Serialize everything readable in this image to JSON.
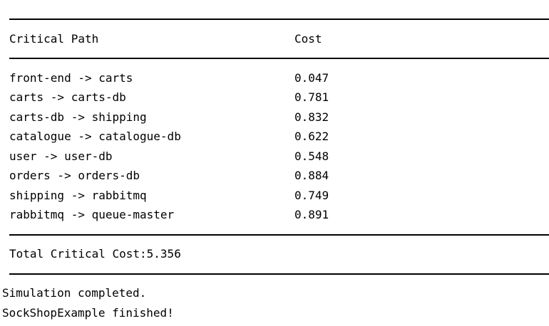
{
  "report": {
    "headers": {
      "path": "Critical Path",
      "cost": "Cost"
    },
    "rows": [
      {
        "path": "front-end -> carts",
        "cost": "0.047"
      },
      {
        "path": "carts -> carts-db",
        "cost": "0.781"
      },
      {
        "path": "carts-db -> shipping",
        "cost": "0.832"
      },
      {
        "path": "catalogue -> catalogue-db",
        "cost": "0.622"
      },
      {
        "path": "user -> user-db",
        "cost": "0.548"
      },
      {
        "path": "orders -> orders-db",
        "cost": "0.884"
      },
      {
        "path": "shipping -> rabbitmq",
        "cost": "0.749"
      },
      {
        "path": "rabbitmq -> queue-master",
        "cost": "0.891"
      }
    ],
    "total": "Total Critical Cost:5.356"
  },
  "log": {
    "lines": [
      "Simulation completed.",
      "SockShopExample finished!"
    ]
  }
}
